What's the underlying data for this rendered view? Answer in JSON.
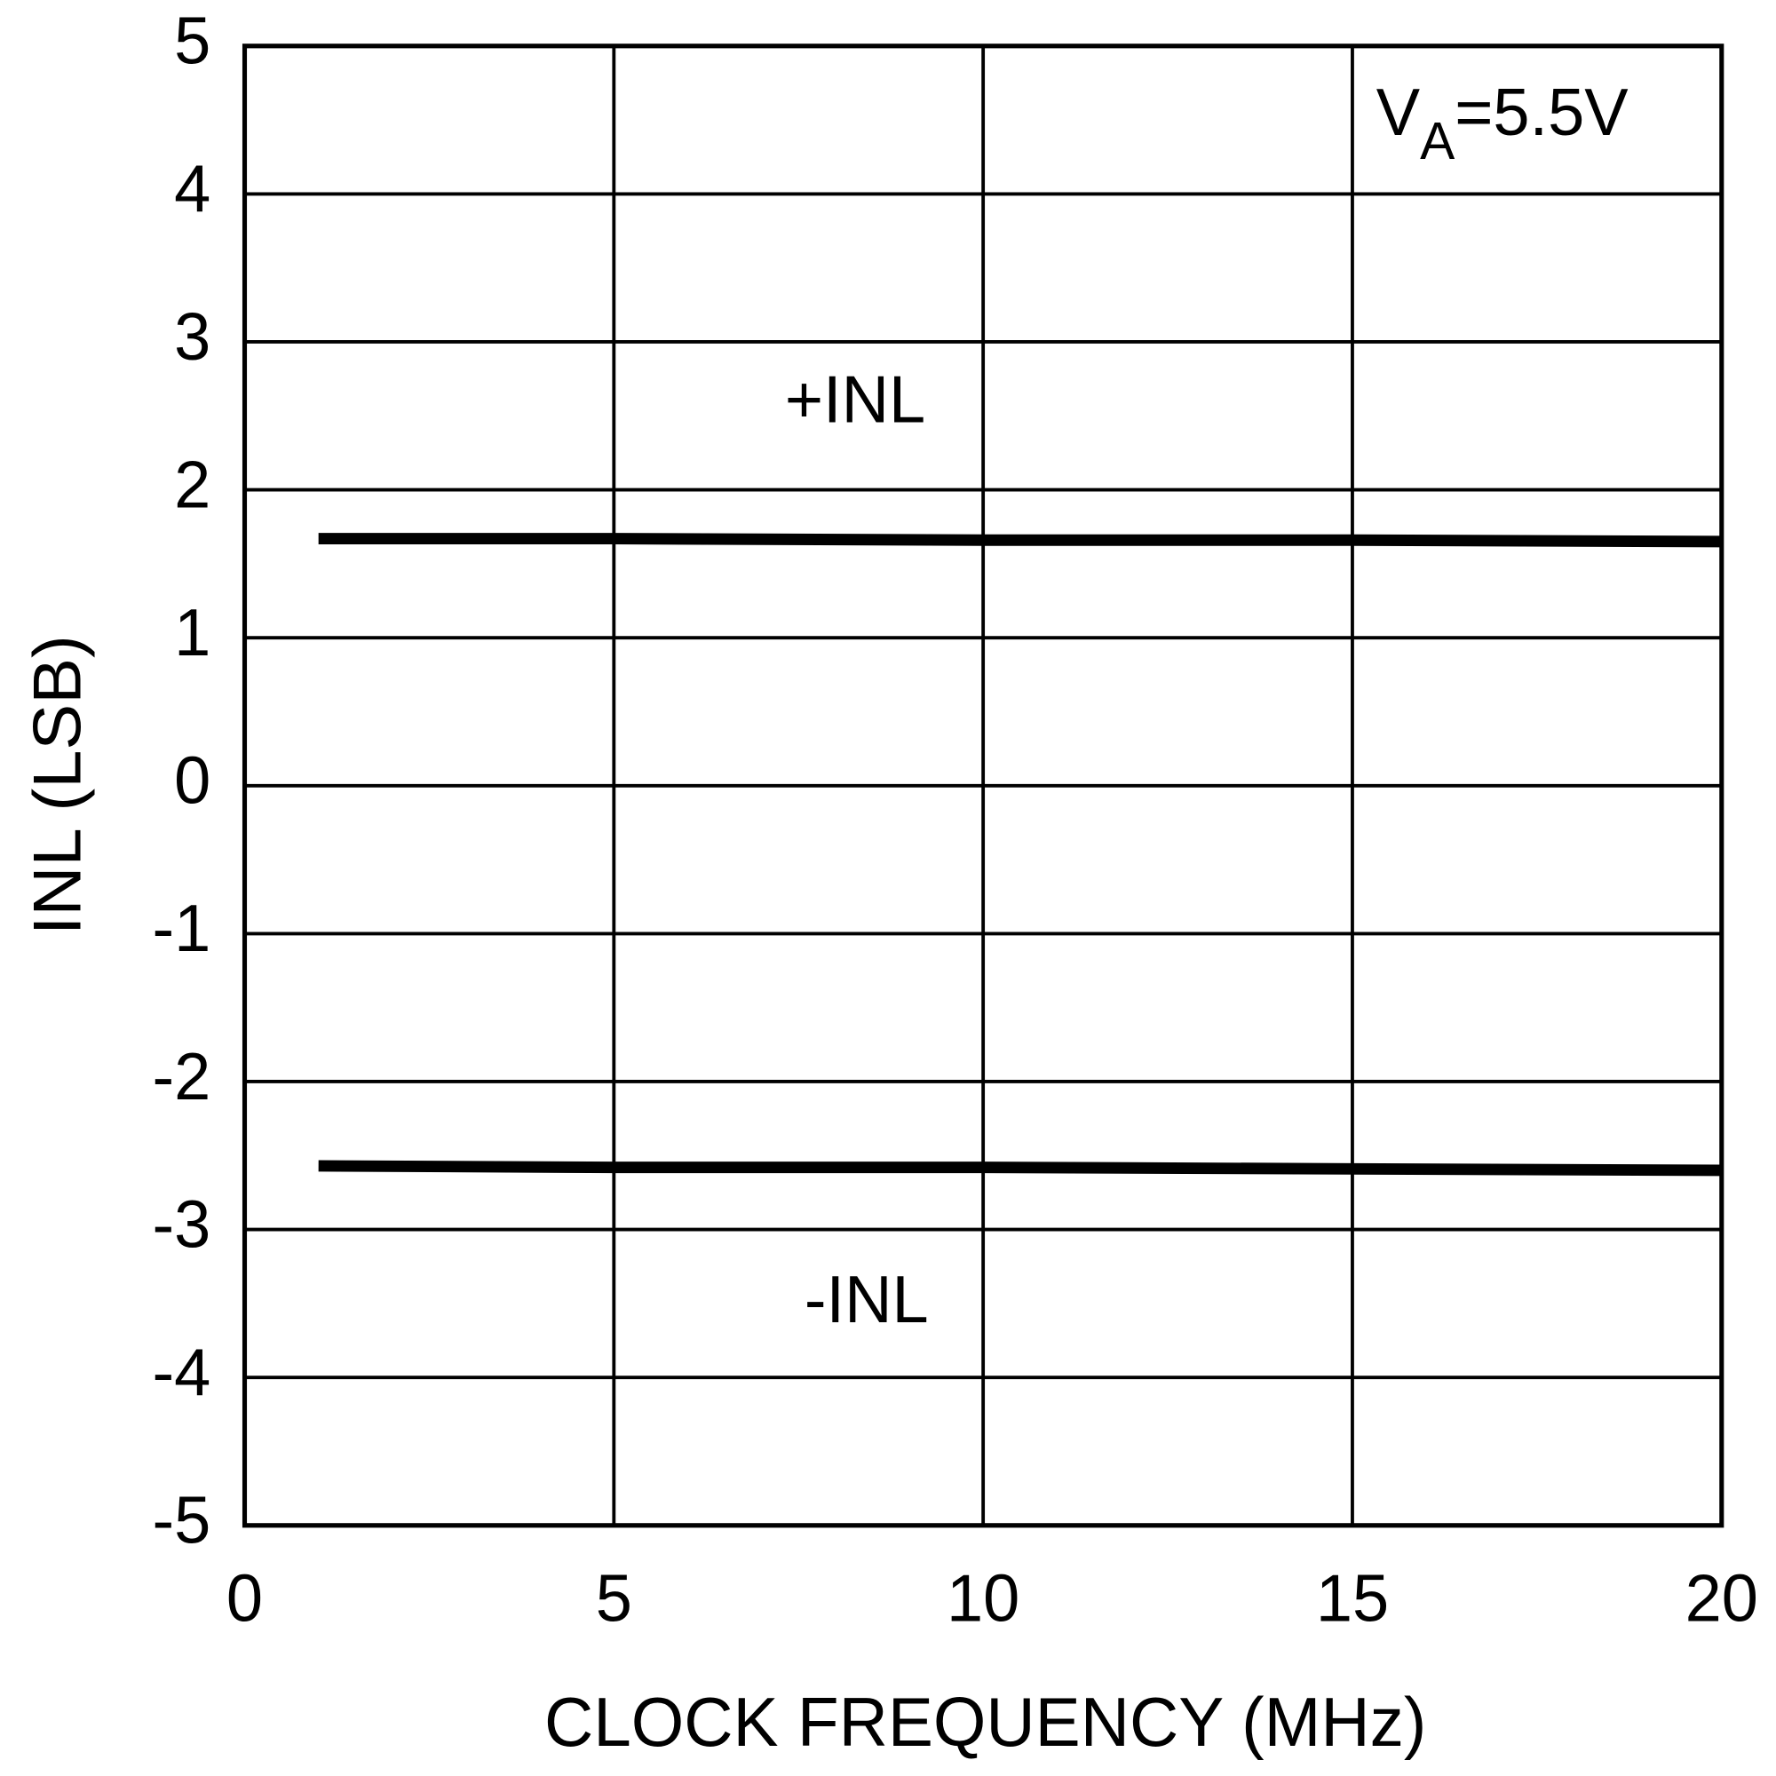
{
  "chart_data": {
    "type": "line",
    "x_label": "CLOCK FREQUENCY (MHz)",
    "y_label": "INL (LSB)",
    "annotation": {
      "main": "V",
      "sub": "A",
      "tail": "=5.5V"
    },
    "x": [
      1,
      5,
      10,
      15,
      20
    ],
    "series": [
      {
        "name": "+INL",
        "color": "#000000",
        "values": [
          1.67,
          1.67,
          1.66,
          1.66,
          1.65
        ]
      },
      {
        "name": "-INL",
        "color": "#000000",
        "values": [
          -2.57,
          -2.58,
          -2.58,
          -2.59,
          -2.6
        ]
      }
    ],
    "xlim": [
      0,
      20
    ],
    "xticks": [
      0,
      5,
      10,
      15,
      20
    ],
    "ylim": [
      -5,
      5
    ],
    "yticks": [
      -5,
      -4,
      -3,
      -2,
      -1,
      0,
      1,
      2,
      3,
      4,
      5
    ],
    "grid": true
  }
}
